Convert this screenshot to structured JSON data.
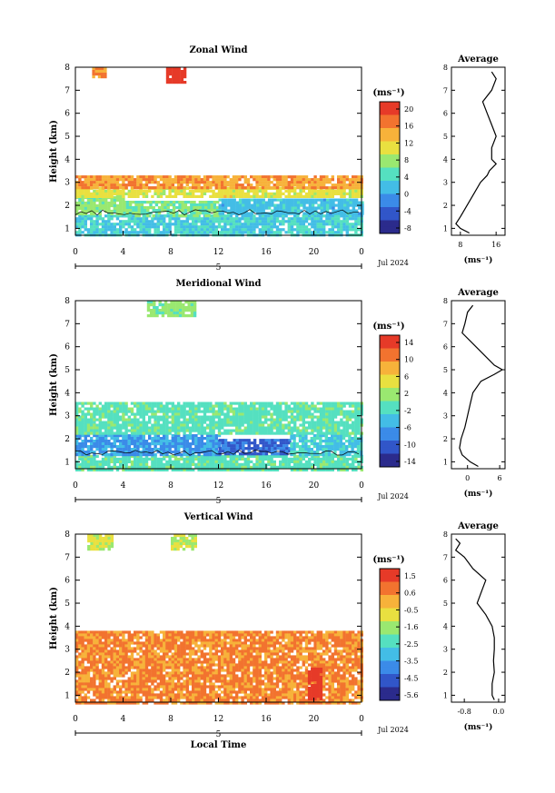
{
  "panels": [
    {
      "title": "Zonal Wind",
      "ylabel": "Height (km)",
      "yticks": [
        "1",
        "2",
        "3",
        "4",
        "5",
        "6",
        "7",
        "8"
      ],
      "xticks": [
        "0",
        "4",
        "8",
        "12",
        "16",
        "20",
        "0"
      ],
      "date_tick": "5",
      "month_label": "Jul 2024",
      "unit_label": "(ms⁻¹)",
      "colorbar_ticks": [
        "20",
        "16",
        "12",
        "8",
        "4",
        "0",
        "-4",
        "-8"
      ],
      "avg_title": "Average",
      "avg_xticks": [
        "8",
        "16"
      ],
      "avg_unit": "(ms⁻¹)"
    },
    {
      "title": "Meridional Wind",
      "ylabel": "Height (km)",
      "yticks": [
        "1",
        "2",
        "3",
        "4",
        "5",
        "6",
        "7",
        "8"
      ],
      "xticks": [
        "0",
        "4",
        "8",
        "12",
        "16",
        "20",
        "0"
      ],
      "date_tick": "5",
      "month_label": "Jul 2024",
      "unit_label": "(ms⁻¹)",
      "colorbar_ticks": [
        "14",
        "10",
        "6",
        "2",
        "-2",
        "-6",
        "-10",
        "-14"
      ],
      "avg_title": "Average",
      "avg_xticks": [
        "0",
        "6"
      ],
      "avg_unit": "(ms⁻¹)"
    },
    {
      "title": "Vertical Wind",
      "ylabel": "Height (km)",
      "yticks": [
        "1",
        "2",
        "3",
        "4",
        "5",
        "6",
        "7",
        "8"
      ],
      "xticks": [
        "0",
        "4",
        "8",
        "12",
        "16",
        "20",
        "0"
      ],
      "date_tick": "5",
      "month_label": "Jul 2024",
      "unit_label": "(ms⁻¹)",
      "colorbar_ticks": [
        "1.5",
        "0.6",
        "-0.5",
        "-1.6",
        "-2.5",
        "-3.5",
        "-4.5",
        "-5.6"
      ],
      "avg_title": "Average",
      "avg_xticks": [
        "-0.8",
        "0.0"
      ],
      "avg_unit": "(ms⁻¹)"
    }
  ],
  "xlabel": "Local Time",
  "chart_data": [
    {
      "type": "heatmap",
      "title": "Zonal Wind",
      "xlabel": "",
      "ylabel": "Height (km)",
      "x_range_hours": [
        0,
        24
      ],
      "y_range_km": [
        0.7,
        8.0
      ],
      "color_range": [
        -8,
        20
      ],
      "colormap": [
        "#2b2b8c",
        "#3156c9",
        "#3b8be8",
        "#43bde6",
        "#55e0c0",
        "#9ae870",
        "#e9e040",
        "#f7b23a",
        "#f2732f",
        "#e63a28"
      ],
      "zero_contour": true,
      "regions": [
        {
          "x0": 0,
          "x1": 24,
          "y0": 0.7,
          "y1": 1.6,
          "value": 3
        },
        {
          "x0": 0,
          "x1": 4,
          "y0": 1.6,
          "y1": 2.4,
          "value": 7
        },
        {
          "x0": 4,
          "x1": 12,
          "y0": 1.6,
          "y1": 2.2,
          "value": 6
        },
        {
          "x0": 12,
          "x1": 24,
          "y0": 1.6,
          "y1": 2.3,
          "value": 2
        },
        {
          "x0": 0,
          "x1": 24,
          "y0": 2.4,
          "y1": 2.8,
          "value": 10
        },
        {
          "x0": 0,
          "x1": 24,
          "y0": 2.8,
          "y1": 3.3,
          "value": 14
        },
        {
          "x0": 7.6,
          "x1": 9.2,
          "y0": 7.3,
          "y1": 8.0,
          "value": 20
        },
        {
          "x0": 1.4,
          "x1": 2.6,
          "y0": 7.6,
          "y1": 8.0,
          "value": 15
        }
      ],
      "average_profile": {
        "xlabel": "(ms⁻¹)",
        "xlim": [
          6,
          18
        ],
        "height": [
          0.8,
          1.0,
          1.2,
          1.5,
          2.0,
          2.5,
          3.0,
          3.3,
          3.5,
          3.8,
          4.0,
          4.5,
          5.0,
          5.5,
          6.0,
          6.5,
          7.0,
          7.5,
          7.8
        ],
        "value": [
          10,
          8,
          7,
          8,
          9.5,
          11,
          12.5,
          14,
          14.5,
          16,
          15,
          15,
          16,
          15,
          14,
          13,
          15,
          16,
          15
        ]
      }
    },
    {
      "type": "heatmap",
      "title": "Meridional Wind",
      "xlabel": "",
      "ylabel": "Height (km)",
      "x_range_hours": [
        0,
        24
      ],
      "y_range_km": [
        0.7,
        8.0
      ],
      "color_range": [
        -14,
        14
      ],
      "colormap": [
        "#2b2b8c",
        "#3156c9",
        "#3b8be8",
        "#43bde6",
        "#55e0c0",
        "#9ae870",
        "#e9e040",
        "#f7b23a",
        "#f2732f",
        "#e63a28"
      ],
      "zero_contour": true,
      "regions": [
        {
          "x0": 0,
          "x1": 24,
          "y0": 0.7,
          "y1": 1.3,
          "value": -1
        },
        {
          "x0": 0,
          "x1": 12,
          "y0": 1.3,
          "y1": 2.2,
          "value": -6
        },
        {
          "x0": 12,
          "x1": 18,
          "y0": 1.4,
          "y1": 2.0,
          "value": -9
        },
        {
          "x0": 18,
          "x1": 24,
          "y0": 1.3,
          "y1": 2.2,
          "value": -3
        },
        {
          "x0": 0,
          "x1": 24,
          "y0": 2.2,
          "y1": 3.6,
          "value": -1
        },
        {
          "x0": 6,
          "x1": 10,
          "y0": 7.4,
          "y1": 8.0,
          "value": 1
        }
      ],
      "average_profile": {
        "xlabel": "(ms⁻¹)",
        "xlim": [
          -3,
          7
        ],
        "height": [
          0.8,
          1.0,
          1.3,
          1.6,
          2.0,
          2.5,
          3.0,
          3.5,
          4.0,
          4.5,
          4.8,
          5.0,
          5.2,
          6.6,
          7.0,
          7.5,
          7.8
        ],
        "value": [
          2,
          0.5,
          -1,
          -1.5,
          -1.2,
          -0.5,
          0,
          0.5,
          1,
          2.5,
          5,
          6.5,
          5,
          -1,
          -0.5,
          0,
          1
        ]
      }
    },
    {
      "type": "heatmap",
      "title": "Vertical Wind",
      "xlabel": "Local Time",
      "ylabel": "Height (km)",
      "x_range_hours": [
        0,
        24
      ],
      "y_range_km": [
        0.7,
        8.0
      ],
      "color_range": [
        -5.6,
        1.5
      ],
      "colormap": [
        "#2b2b8c",
        "#3156c9",
        "#3b8be8",
        "#43bde6",
        "#55e0c0",
        "#9ae870",
        "#e9e040",
        "#f7b23a",
        "#f2732f",
        "#e63a28"
      ],
      "regions": [
        {
          "x0": 0,
          "x1": 24,
          "y0": 0.7,
          "y1": 3.8,
          "value": 0.2
        },
        {
          "x0": 19.5,
          "x1": 20.5,
          "y0": 0.8,
          "y1": 2.2,
          "value": 1.2
        },
        {
          "x0": 1,
          "x1": 3,
          "y0": 7.4,
          "y1": 8.0,
          "value": -1.2
        },
        {
          "x0": 8,
          "x1": 10,
          "y0": 7.3,
          "y1": 8.0,
          "value": -1.4
        }
      ],
      "average_profile": {
        "xlabel": "(ms⁻¹)",
        "xlim": [
          -1.1,
          0.15
        ],
        "height": [
          0.8,
          1.0,
          1.5,
          2.0,
          2.5,
          3.0,
          3.5,
          4.0,
          4.5,
          5.0,
          5.5,
          6.0,
          6.5,
          7.0,
          7.3,
          7.6,
          7.8
        ],
        "value": [
          -0.1,
          -0.15,
          -0.15,
          -0.1,
          -0.12,
          -0.1,
          -0.1,
          -0.15,
          -0.3,
          -0.5,
          -0.4,
          -0.3,
          -0.6,
          -0.8,
          -1.0,
          -0.9,
          -1.0
        ]
      }
    }
  ]
}
